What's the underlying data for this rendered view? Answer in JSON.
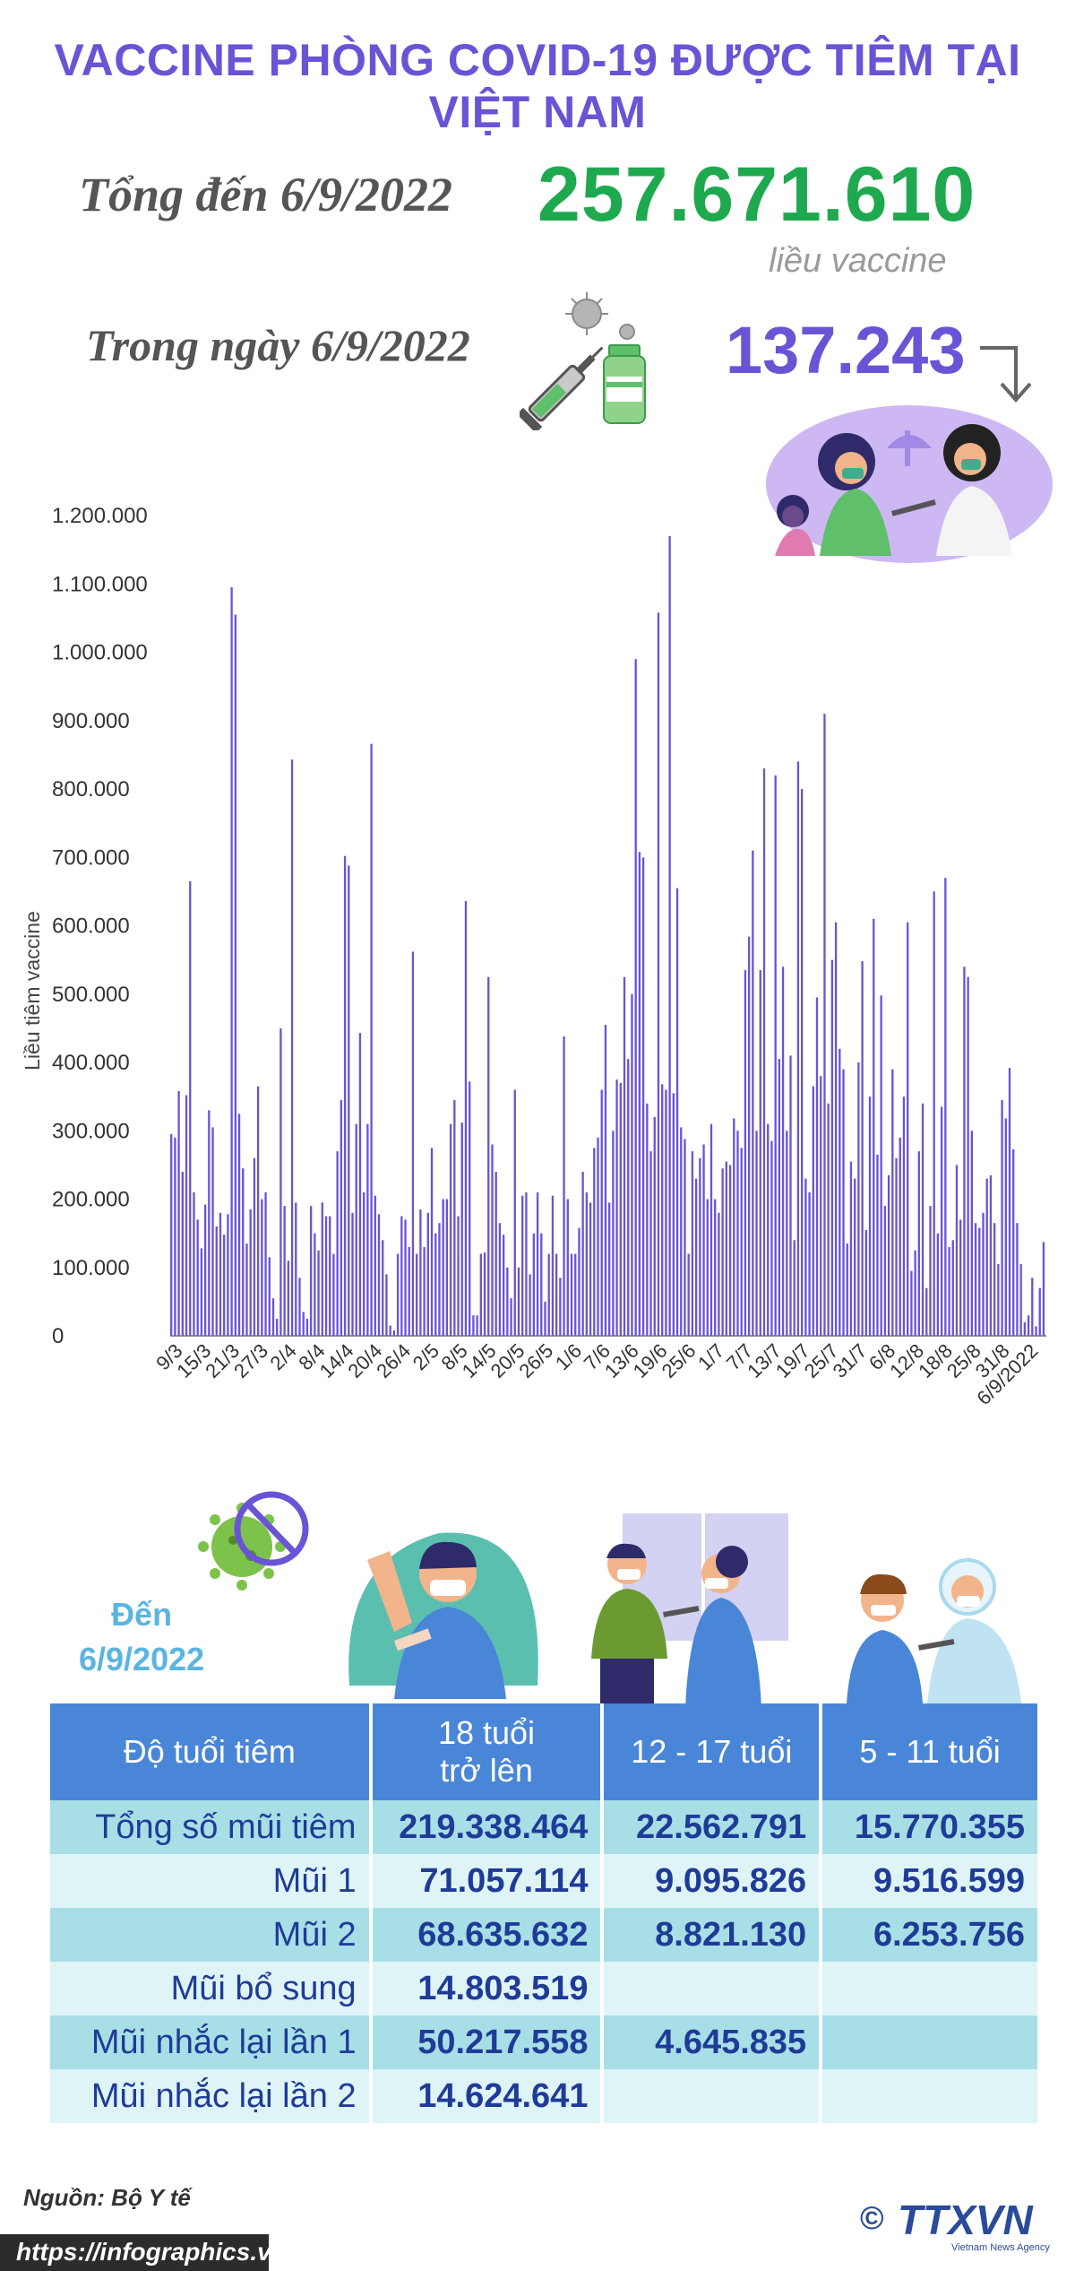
{
  "header": {
    "title": "VACCINE PHÒNG COVID-19 ĐƯỢC TIÊM TẠI VIỆT NAM"
  },
  "summary": {
    "total_label": "Tổng đến 6/9/2022",
    "total_value": "257.671.610",
    "total_unit": "liều vaccine",
    "day_label": "Trong ngày 6/9/2022",
    "day_value": "137.243",
    "trend_icon": "arrow-down-icon"
  },
  "chart_data": {
    "type": "bar",
    "ylabel": "Liều tiêm vaccine",
    "ylim": [
      0,
      1200000
    ],
    "y_ticks": [
      "0",
      "100.000",
      "200.000",
      "300.000",
      "400.000",
      "500.000",
      "600.000",
      "700.000",
      "800.000",
      "900.000",
      "1.000.000",
      "1.100.000",
      "1.200.000"
    ],
    "x_ticks": [
      "9/3",
      "15/3",
      "21/3",
      "27/3",
      "2/4",
      "8/4",
      "14/4",
      "20/4",
      "26/4",
      "2/5",
      "8/5",
      "14/5",
      "20/5",
      "26/5",
      "1/6",
      "7/6",
      "13/6",
      "19/6",
      "25/6",
      "1/7",
      "7/7",
      "13/7",
      "19/7",
      "25/7",
      "31/7",
      "6/8",
      "12/8",
      "18/8",
      "25/8",
      "31/8",
      "6/9/2022"
    ],
    "bar_color": "#6a54d6",
    "values": [
      295000,
      290000,
      358000,
      240000,
      352000,
      665000,
      210000,
      170000,
      128000,
      192000,
      330000,
      305000,
      160000,
      180000,
      148000,
      178000,
      1095000,
      1055000,
      325000,
      245000,
      135000,
      185000,
      260000,
      365000,
      200000,
      210000,
      115000,
      55000,
      25000,
      450000,
      190000,
      110000,
      843000,
      195000,
      85000,
      35000,
      25000,
      190000,
      150000,
      125000,
      195000,
      175000,
      175000,
      120000,
      270000,
      345000,
      702000,
      688000,
      180000,
      310000,
      443000,
      210000,
      310000,
      866000,
      205000,
      178000,
      140000,
      90000,
      15000,
      8000,
      120000,
      175000,
      170000,
      130000,
      562000,
      120000,
      185000,
      130000,
      180000,
      275000,
      150000,
      165000,
      200000,
      200000,
      310000,
      345000,
      175000,
      312000,
      636000,
      372000,
      30000,
      30000,
      120000,
      122000,
      525000,
      280000,
      240000,
      165000,
      148000,
      100000,
      55000,
      360000,
      100000,
      205000,
      210000,
      90000,
      150000,
      210000,
      150000,
      50000,
      120000,
      205000,
      120000,
      85000,
      438000,
      200000,
      120000,
      120000,
      158000,
      240000,
      210000,
      195000,
      275000,
      290000,
      360000,
      455000,
      195000,
      300000,
      375000,
      370000,
      525000,
      405000,
      500000,
      990000,
      708000,
      700000,
      340000,
      270000,
      320000,
      1058000,
      368000,
      360000,
      1170000,
      355000,
      655000,
      305000,
      288000,
      120000,
      270000,
      230000,
      260000,
      280000,
      200000,
      310000,
      200000,
      180000,
      245000,
      255000,
      250000,
      318000,
      300000,
      275000,
      535000,
      584000,
      710000,
      300000,
      535000,
      830000,
      310000,
      285000,
      820000,
      405000,
      540000,
      300000,
      410000,
      140000,
      840000,
      800000,
      230000,
      210000,
      365000,
      495000,
      380000,
      910000,
      340000,
      550000,
      605000,
      420000,
      390000,
      135000,
      255000,
      230000,
      400000,
      548000,
      155000,
      350000,
      610000,
      265000,
      498000,
      190000,
      235000,
      390000,
      260000,
      290000,
      350000,
      605000,
      95000,
      125000,
      270000,
      340000,
      70000,
      190000,
      650000,
      150000,
      335000,
      670000,
      130000,
      140000,
      250000,
      170000,
      540000,
      525000,
      300000,
      165000,
      158000,
      180000,
      230000,
      235000,
      165000,
      105000,
      345000,
      318000,
      392000,
      273000,
      165000,
      105000,
      20000,
      30000,
      85000,
      14000,
      70000,
      137243
    ]
  },
  "age_section": {
    "label_line1": "Đến",
    "label_line2": "6/9/2022"
  },
  "table": {
    "headers": [
      "Độ tuổi tiêm",
      "18 tuổi trở lên",
      "12 - 17 tuổi",
      "5 - 11 tuổi"
    ],
    "header_col2_line1": "18 tuổi",
    "header_col2_line2": "trở lên",
    "rows": [
      {
        "label": "Tổng số mũi tiêm",
        "values": [
          "219.338.464",
          "22.562.791",
          "15.770.355"
        ]
      },
      {
        "label": "Mũi 1",
        "values": [
          "71.057.114",
          "9.095.826",
          "9.516.599"
        ]
      },
      {
        "label": "Mũi 2",
        "values": [
          "68.635.632",
          "8.821.130",
          "6.253.756"
        ]
      },
      {
        "label": "Mũi bổ sung",
        "values": [
          "14.803.519",
          "",
          ""
        ]
      },
      {
        "label": "Mũi nhắc lại lần 1",
        "values": [
          "50.217.558",
          "4.645.835",
          ""
        ]
      },
      {
        "label": "Mũi nhắc lại lần 2",
        "values": [
          "14.624.641",
          "",
          ""
        ]
      }
    ]
  },
  "footer": {
    "source": "Nguồn: Bộ Y tế",
    "url": "https://infographics.vn",
    "logo_text": "TTXVN",
    "logo_subtext": "Vietnam News Agency",
    "copyright_symbol": "©"
  }
}
